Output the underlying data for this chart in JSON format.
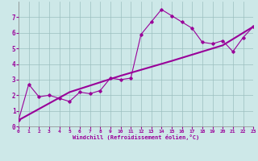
{
  "xlabel": "Windchill (Refroidissement éolien,°C)",
  "xlim": [
    0,
    23
  ],
  "ylim": [
    0,
    8
  ],
  "xticks": [
    0,
    1,
    2,
    3,
    4,
    5,
    6,
    7,
    8,
    9,
    10,
    11,
    12,
    13,
    14,
    15,
    16,
    17,
    18,
    19,
    20,
    21,
    22,
    23
  ],
  "yticks": [
    0,
    1,
    2,
    3,
    4,
    5,
    6,
    7
  ],
  "bg_color": "#cde8e8",
  "line_color": "#990099",
  "grid_color": "#9bbfbf",
  "scatter_x": [
    0,
    1,
    2,
    3,
    4,
    5,
    6,
    7,
    8,
    9,
    10,
    11,
    12,
    13,
    14,
    15,
    16,
    17,
    18,
    19,
    20,
    21,
    22,
    23
  ],
  "scatter_y": [
    0.4,
    2.7,
    1.9,
    2.0,
    1.8,
    1.6,
    2.2,
    2.1,
    2.3,
    3.1,
    3.0,
    3.1,
    5.9,
    6.7,
    7.5,
    7.1,
    6.7,
    6.3,
    5.4,
    5.3,
    5.5,
    4.8,
    5.7,
    6.4
  ],
  "trend_x": [
    0,
    5,
    10,
    15,
    20,
    23
  ],
  "trend_y": [
    0.4,
    2.2,
    3.25,
    4.2,
    5.2,
    6.4
  ]
}
